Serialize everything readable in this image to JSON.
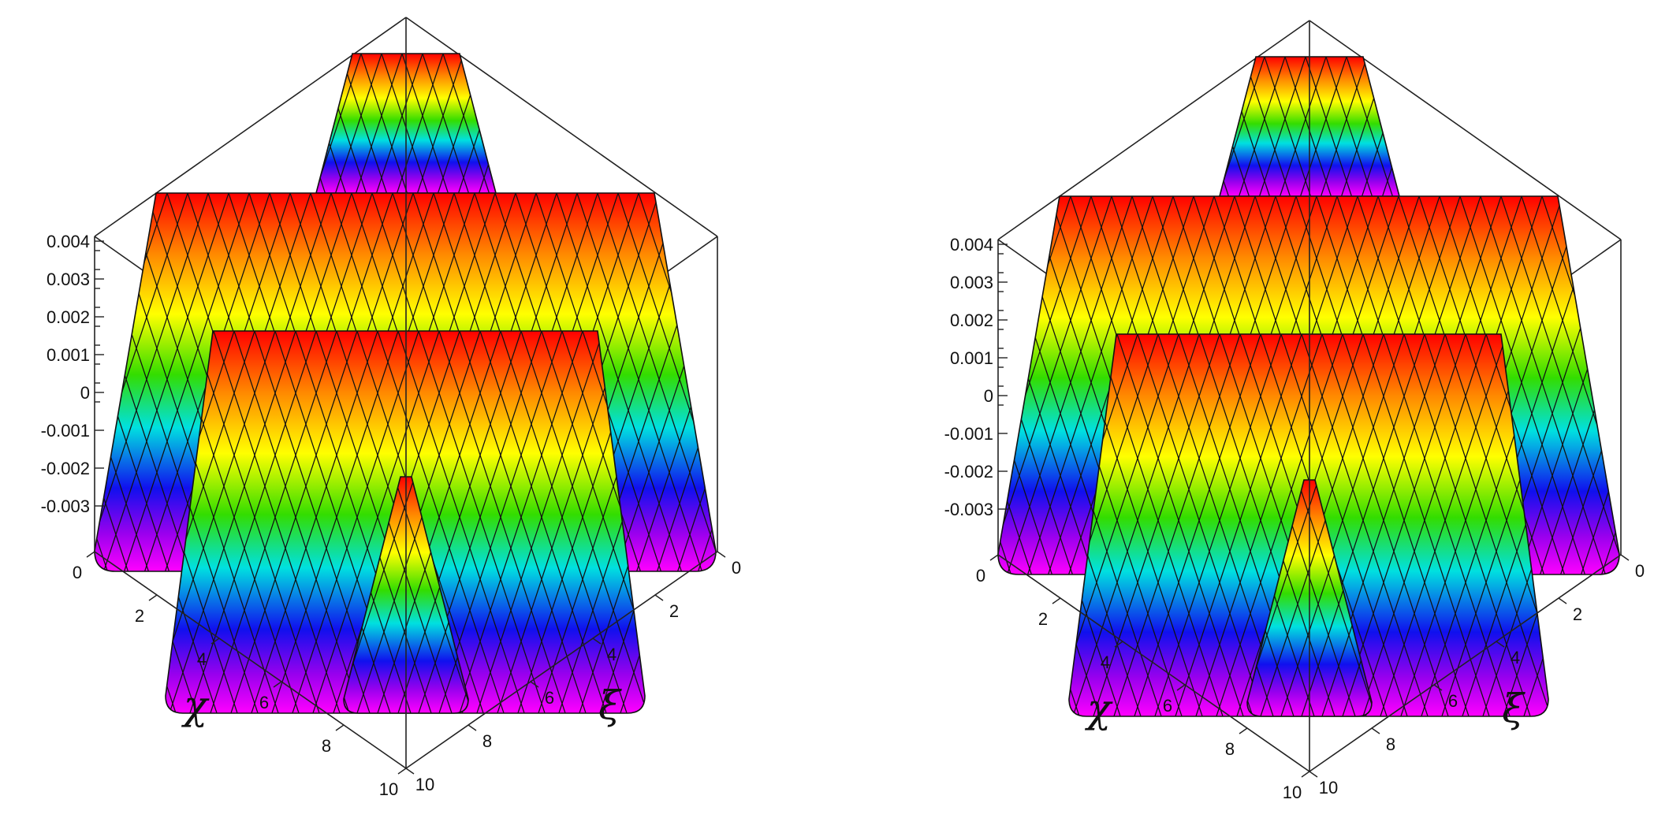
{
  "chart_data": [
    {
      "type": "surface3d",
      "colormap": "rainbow",
      "z_axis": {
        "ticks": [
          "0.004",
          "0.003",
          "0.002",
          "0.001",
          "0",
          "-0.001",
          "-0.002",
          "-0.003"
        ]
      },
      "x_axis": {
        "label": "χ",
        "ticks": [
          "0",
          "2",
          "4",
          "6",
          "8",
          "10"
        ],
        "range": [
          0,
          10
        ]
      },
      "y_axis": {
        "label": "ξ",
        "ticks": [
          "0",
          "2",
          "4",
          "6",
          "8",
          "10"
        ],
        "range": [
          0,
          10
        ]
      },
      "z_range": [
        -0.004,
        0.004
      ]
    },
    {
      "type": "surface3d",
      "colormap": "rainbow",
      "z_axis": {
        "ticks": [
          "0.004",
          "0.003",
          "0.002",
          "0.001",
          "0",
          "-0.001",
          "-0.002",
          "-0.003"
        ]
      },
      "x_axis": {
        "label": "χ",
        "ticks": [
          "0",
          "2",
          "4",
          "6",
          "8",
          "10"
        ],
        "range": [
          0,
          10
        ]
      },
      "y_axis": {
        "label": "ξ",
        "ticks": [
          "0",
          "2",
          "4",
          "6",
          "8",
          "10"
        ],
        "range": [
          0,
          10
        ]
      },
      "z_range": [
        -0.004,
        0.004
      ]
    }
  ]
}
